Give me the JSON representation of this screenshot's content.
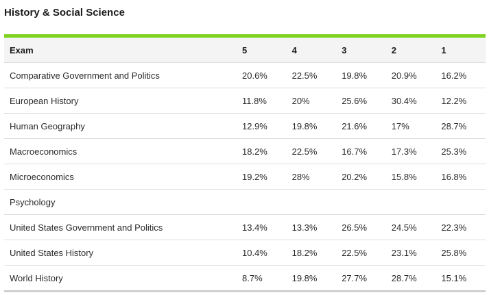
{
  "section": {
    "title": "History & Social Science"
  },
  "colors": {
    "accent_rule": "#7ed321",
    "header_bg": "#f4f4f4"
  },
  "table": {
    "headers": [
      "Exam",
      "5",
      "4",
      "3",
      "2",
      "1"
    ],
    "rows": [
      {
        "exam": "Comparative Government and Politics",
        "s5": "20.6%",
        "s4": "22.5%",
        "s3": "19.8%",
        "s2": "20.9%",
        "s1": "16.2%"
      },
      {
        "exam": "European History",
        "s5": "11.8%",
        "s4": "20%",
        "s3": "25.6%",
        "s2": "30.4%",
        "s1": "12.2%"
      },
      {
        "exam": "Human Geography",
        "s5": "12.9%",
        "s4": "19.8%",
        "s3": "21.6%",
        "s2": "17%",
        "s1": "28.7%"
      },
      {
        "exam": "Macroeconomics",
        "s5": "18.2%",
        "s4": "22.5%",
        "s3": "16.7%",
        "s2": "17.3%",
        "s1": "25.3%"
      },
      {
        "exam": "Microeconomics",
        "s5": "19.2%",
        "s4": "28%",
        "s3": "20.2%",
        "s2": "15.8%",
        "s1": "16.8%"
      },
      {
        "exam": "Psychology",
        "s5": "",
        "s4": "",
        "s3": "",
        "s2": "",
        "s1": ""
      },
      {
        "exam": "United States Government and Politics",
        "s5": "13.4%",
        "s4": "13.3%",
        "s3": "26.5%",
        "s2": "24.5%",
        "s1": "22.3%"
      },
      {
        "exam": "United States History",
        "s5": "10.4%",
        "s4": "18.2%",
        "s3": "22.5%",
        "s2": "23.1%",
        "s1": "25.8%"
      },
      {
        "exam": "World History",
        "s5": "8.7%",
        "s4": "19.8%",
        "s3": "27.7%",
        "s2": "28.7%",
        "s1": "15.1%"
      }
    ]
  }
}
